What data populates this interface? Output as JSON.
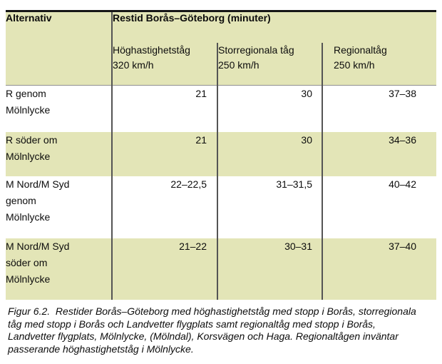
{
  "table": {
    "header": {
      "col0": "Alternativ",
      "title": "Restid Borås–Göteborg (minuter)",
      "subcolumns": [
        {
          "text": "Höghastighetståg\n320 km/h"
        },
        {
          "text": "Storregionala tåg\n250 km/h"
        },
        {
          "text": "Regionaltåg\n250 km/h"
        }
      ]
    },
    "rows": [
      {
        "alternative": "R genom\nMölnlycke",
        "values": [
          "21",
          "30",
          "37–38"
        ]
      },
      {
        "alternative": "R söder om\nMölnlycke",
        "values": [
          "21",
          "30",
          "34–36"
        ]
      },
      {
        "alternative": "M Nord/M Syd\ngenom\nMölnlycke",
        "values": [
          "22–22,5",
          "31–31,5",
          "40–42"
        ]
      },
      {
        "alternative": "M Nord/M Syd\nsöder om\nMölnlycke",
        "values": [
          "21–22",
          "30–31",
          "37–40"
        ]
      }
    ]
  },
  "caption": {
    "text": "Figur 6.2.  Restider Borås–Göteborg med höghastighetståg med stopp i Borås, storregionala\ntåg med stopp i Borås och Landvetter flygplats samt regionaltåg med stopp i Borås,\nLandvetter flygplats, Mölnlycke, (Mölndal), Korsvägen och Haga. Regionaltågen inväntar\npasserande höghastighetståg i Mölnlycke."
  },
  "colors": {
    "row_green": "#e3e5b7",
    "row_white": "#ffffff",
    "top_rule": "#161616",
    "column_rule": "#545454",
    "header_rule": "#909090",
    "text": "#0c0c0c"
  }
}
